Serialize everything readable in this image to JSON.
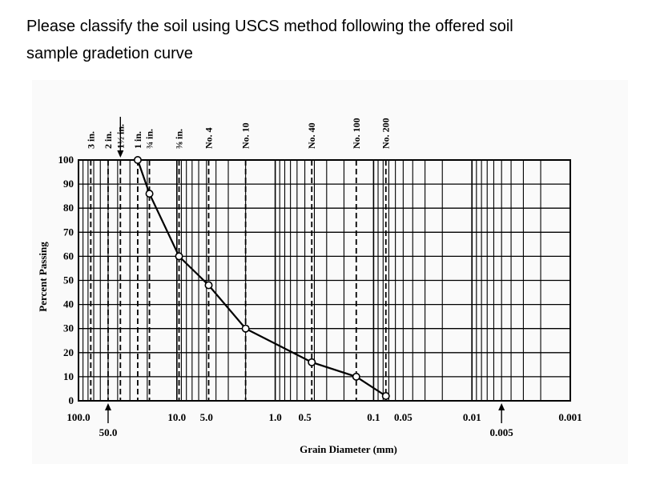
{
  "question": {
    "line1": "Please classify the soil using USCS method following the offered soil",
    "line2": "sample gradetion curve"
  },
  "chart_data": {
    "type": "line",
    "xscale": "log",
    "xaxis_reversed": true,
    "xlim": [
      100,
      0.001
    ],
    "ylim": [
      0,
      100
    ],
    "xlabel": "Grain Diameter (mm)",
    "ylabel": "Percent Passing",
    "yticks": [
      "0",
      "10",
      "20",
      "30",
      "40",
      "50",
      "60",
      "70",
      "80",
      "90",
      "100"
    ],
    "xtick_labels": [
      {
        "text": "100.0",
        "value": 100,
        "row": 1
      },
      {
        "text": "50.0",
        "value": 50,
        "row": 2,
        "arrow": true
      },
      {
        "text": "10.0",
        "value": 10,
        "row": 1
      },
      {
        "text": "5.0",
        "value": 5,
        "row": 1
      },
      {
        "text": "1.0",
        "value": 1,
        "row": 1
      },
      {
        "text": "0.5",
        "value": 0.5,
        "row": 1
      },
      {
        "text": "0.1",
        "value": 0.1,
        "row": 1
      },
      {
        "text": "0.05",
        "value": 0.05,
        "row": 1
      },
      {
        "text": "0.01",
        "value": 0.01,
        "row": 1
      },
      {
        "text": "0.005",
        "value": 0.005,
        "row": 2,
        "arrow": true
      },
      {
        "text": "0.001",
        "value": 0.001,
        "row": 1
      }
    ],
    "sieves": [
      {
        "label": "3 in.",
        "size": 75
      },
      {
        "label": "2 in.",
        "size": 50
      },
      {
        "label": "1½ in.",
        "size": 37.5,
        "arrow": true
      },
      {
        "label": "1 in.",
        "size": 25
      },
      {
        "label": "¾ in.",
        "size": 19
      },
      {
        "label": "⅜ in.",
        "size": 9.5
      },
      {
        "label": "No. 4",
        "size": 4.75
      },
      {
        "label": "No. 10",
        "size": 2.0
      },
      {
        "label": "No. 40",
        "size": 0.425
      },
      {
        "label": "No. 100",
        "size": 0.15
      },
      {
        "label": "No. 200",
        "size": 0.075
      }
    ],
    "series": [
      {
        "x": [
          25,
          19,
          9.5,
          4.75,
          2.0,
          0.425,
          0.15,
          0.075
        ],
        "y": [
          100,
          86,
          60,
          48,
          30,
          16,
          10,
          2
        ]
      }
    ],
    "grid": true,
    "colors": {
      "line": "#000000",
      "marker_fill": "#ffffff",
      "grid": "#000000"
    }
  }
}
